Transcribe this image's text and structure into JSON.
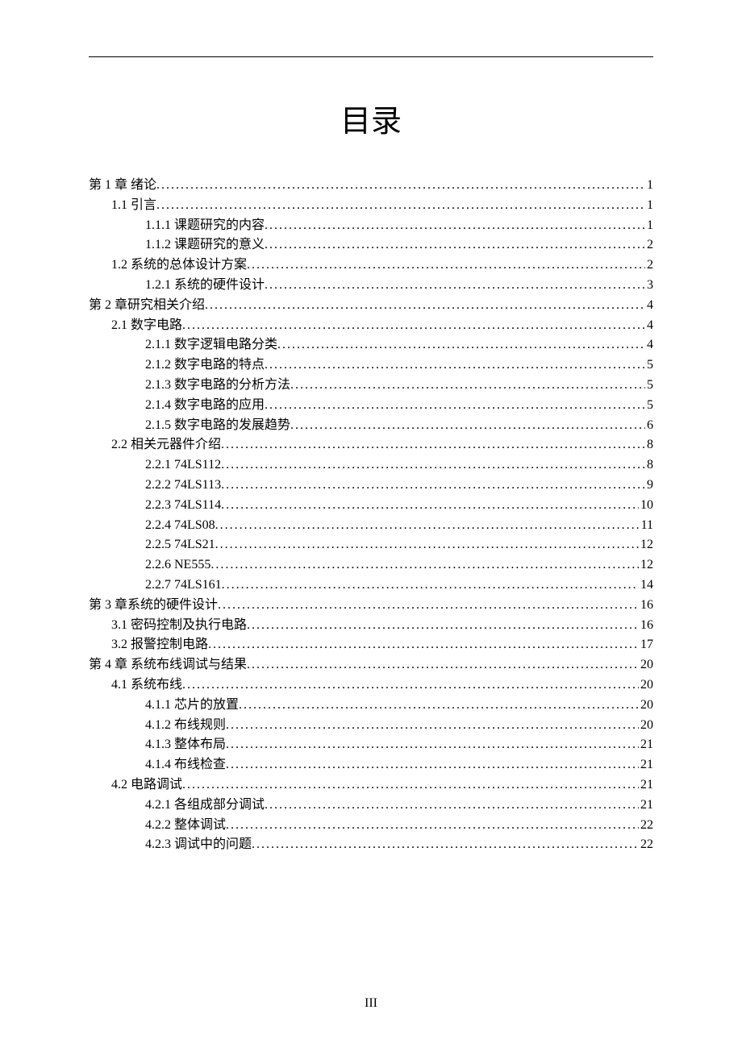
{
  "title": "目录",
  "page_footer": "III",
  "entries": [
    {
      "indent": 0,
      "label_num": "第 1 章 ",
      "label_text": "绪论",
      "page": "1"
    },
    {
      "indent": 1,
      "label_num": "1.1 ",
      "label_text": "引言",
      "page": "1"
    },
    {
      "indent": 2,
      "label_num": "1.1.1 ",
      "label_text": "课题研究的内容",
      "page": "1"
    },
    {
      "indent": 2,
      "label_num": "1.1.2 ",
      "label_text": "课题研究的意义",
      "page": "2"
    },
    {
      "indent": 1,
      "label_num": "1.2 ",
      "label_text": "系统的总体设计方案",
      "page": "2"
    },
    {
      "indent": 2,
      "label_num": "1.2.1 ",
      "label_text": "系统的硬件设计",
      "page": "3"
    },
    {
      "indent": 0,
      "label_num": "第 2 章",
      "label_text": "研究相关介绍",
      "page": "4"
    },
    {
      "indent": 1,
      "label_num": "2.1  ",
      "label_text": "数字电路",
      "page": "4"
    },
    {
      "indent": 2,
      "label_num": "2.1.1 ",
      "label_text": "数字逻辑电路分类",
      "page": "4"
    },
    {
      "indent": 2,
      "label_num": "2.1.2 ",
      "label_text": "数字电路的特点",
      "page": "5"
    },
    {
      "indent": 2,
      "label_num": "2.1.3  ",
      "label_text": "数字电路的分析方法",
      "page": "5"
    },
    {
      "indent": 2,
      "label_num": "2.1.4 ",
      "label_text": "数字电路的应用",
      "page": "5"
    },
    {
      "indent": 2,
      "label_num": "2.1.5 ",
      "label_text": "数字电路的发展趋势",
      "page": "6"
    },
    {
      "indent": 1,
      "label_num": "2.2  ",
      "label_text": "相关元器件介绍",
      "page": "8"
    },
    {
      "indent": 2,
      "label_num": "2.2.1 ",
      "label_text": "74LS112",
      "page": "8",
      "en": true
    },
    {
      "indent": 2,
      "label_num": "2.2.2 ",
      "label_text": "74LS113",
      "page": "9",
      "en": true
    },
    {
      "indent": 2,
      "label_num": "2.2.3 ",
      "label_text": "74LS114",
      "page": "10",
      "en": true
    },
    {
      "indent": 2,
      "label_num": "2.2.4 ",
      "label_text": "74LS08",
      "page": "11",
      "en": true
    },
    {
      "indent": 2,
      "label_num": "2.2.5 ",
      "label_text": "74LS21",
      "page": "12",
      "en": true
    },
    {
      "indent": 2,
      "label_num": "2.2.6 ",
      "label_text": "NE555",
      "page": "12",
      "en": true
    },
    {
      "indent": 2,
      "label_num": "2.2.7 ",
      "label_text": "74LS161",
      "page": "14",
      "en": true
    },
    {
      "indent": 0,
      "label_num": "第 3 章",
      "label_text": "系统的硬件设计",
      "page": "16"
    },
    {
      "indent": 1,
      "label_num": "3.1 ",
      "label_text": "密码控制及执行电路",
      "page": "16"
    },
    {
      "indent": 1,
      "label_num": "3.2 ",
      "label_text": "报警控制电路",
      "page": "17"
    },
    {
      "indent": 0,
      "label_num": "第 4 章  ",
      "label_text": "系统布线调试与结果",
      "page": "20"
    },
    {
      "indent": 1,
      "label_num": "4.1  ",
      "label_text": "系统布线",
      "page": "20"
    },
    {
      "indent": 2,
      "label_num": "4.1.1 ",
      "label_text": "芯片的放置",
      "page": "20"
    },
    {
      "indent": 2,
      "label_num": "4.1.2  ",
      "label_text": "布线规则",
      "page": "20"
    },
    {
      "indent": 2,
      "label_num": "4.1.3  ",
      "label_text": "整体布局",
      "page": "21"
    },
    {
      "indent": 2,
      "label_num": "4.1.4  ",
      "label_text": "布线检查",
      "page": "21"
    },
    {
      "indent": 1,
      "label_num": "4.2  ",
      "label_text": "电路调试",
      "page": "21"
    },
    {
      "indent": 2,
      "label_num": "4.2.1  ",
      "label_text": "各组成部分调试",
      "page": "21"
    },
    {
      "indent": 2,
      "label_num": "4.2.2  ",
      "label_text": "整体调试",
      "page": "22"
    },
    {
      "indent": 2,
      "label_num": "4.2.3 ",
      "label_text": "调试中的问题",
      "page": "22"
    }
  ]
}
